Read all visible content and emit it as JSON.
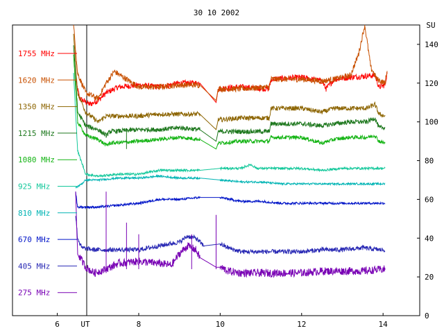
{
  "chart_data": {
    "type": "line",
    "title": "30 10 2002",
    "xlabel": "UT",
    "ylabel": "SU",
    "xlim": [
      4.9,
      14.9
    ],
    "ylim": [
      0,
      150
    ],
    "x_ticks": [
      "6",
      "8",
      "10",
      "12",
      "14"
    ],
    "x_tick_values": [
      6,
      8,
      10,
      12,
      14
    ],
    "y_ticks": [
      "0",
      "20",
      "40",
      "60",
      "80",
      "100",
      "120",
      "140"
    ],
    "y_tick_values": [
      0,
      20,
      40,
      60,
      80,
      100,
      120,
      140
    ],
    "grid": false,
    "legend_position": "left",
    "series": [
      {
        "name": "1755 MHz",
        "color": "#ff0000",
        "noise": 1.5,
        "points": [
          [
            6.45,
            122
          ],
          [
            6.55,
            112
          ],
          [
            6.8,
            109
          ],
          [
            7.0,
            111
          ],
          [
            7.2,
            115
          ],
          [
            7.5,
            118
          ],
          [
            8.0,
            119
          ],
          [
            8.5,
            118
          ],
          [
            9.0,
            120
          ],
          [
            9.5,
            120
          ],
          [
            9.9,
            110
          ],
          [
            9.95,
            117
          ],
          [
            10.5,
            118
          ],
          [
            11.2,
            117
          ],
          [
            11.25,
            122
          ],
          [
            12.0,
            123
          ],
          [
            12.5,
            121
          ],
          [
            12.6,
            117
          ],
          [
            12.8,
            122
          ],
          [
            13.2,
            123
          ],
          [
            13.8,
            124
          ],
          [
            13.9,
            118
          ],
          [
            14.05,
            119
          ],
          [
            14.1,
            126
          ]
        ]
      },
      {
        "name": "1620 MHz",
        "color": "#c85000",
        "noise": 1.5,
        "points": [
          [
            6.4,
            150
          ],
          [
            6.5,
            125
          ],
          [
            6.7,
            115
          ],
          [
            7.0,
            112
          ],
          [
            7.2,
            120
          ],
          [
            7.4,
            126
          ],
          [
            7.7,
            122
          ],
          [
            8.0,
            118
          ],
          [
            8.5,
            118
          ],
          [
            9.0,
            119
          ],
          [
            9.5,
            119
          ],
          [
            9.9,
            111
          ],
          [
            9.95,
            117
          ],
          [
            10.5,
            117
          ],
          [
            11.2,
            118
          ],
          [
            11.25,
            122
          ],
          [
            12.0,
            122
          ],
          [
            12.5,
            121
          ],
          [
            12.8,
            122
          ],
          [
            13.2,
            124
          ],
          [
            13.4,
            135
          ],
          [
            13.55,
            150
          ],
          [
            13.7,
            128
          ],
          [
            13.85,
            122
          ],
          [
            14.05,
            120
          ],
          [
            14.1,
            127
          ]
        ]
      },
      {
        "name": "1350 MHz",
        "color": "#8c6400",
        "noise": 1.2,
        "points": [
          [
            6.4,
            145
          ],
          [
            6.5,
            115
          ],
          [
            6.7,
            105
          ],
          [
            7.0,
            100
          ],
          [
            7.2,
            103
          ],
          [
            8.0,
            103
          ],
          [
            8.5,
            104
          ],
          [
            9.0,
            104
          ],
          [
            9.5,
            104
          ],
          [
            9.9,
            96
          ],
          [
            9.95,
            101
          ],
          [
            10.5,
            102
          ],
          [
            11.2,
            102
          ],
          [
            11.25,
            107
          ],
          [
            12.0,
            107
          ],
          [
            12.5,
            105
          ],
          [
            12.8,
            107
          ],
          [
            13.2,
            107
          ],
          [
            13.6,
            107
          ],
          [
            13.8,
            109
          ],
          [
            13.9,
            104
          ],
          [
            14.05,
            103
          ]
        ]
      },
      {
        "name": "1215 MHz",
        "color": "#1e781e",
        "noise": 1.2,
        "points": [
          [
            6.4,
            140
          ],
          [
            6.5,
            105
          ],
          [
            6.7,
            98
          ],
          [
            7.0,
            96
          ],
          [
            7.2,
            93
          ],
          [
            7.3,
            95
          ],
          [
            8.0,
            96
          ],
          [
            8.5,
            96
          ],
          [
            9.0,
            97
          ],
          [
            9.5,
            96
          ],
          [
            9.9,
            90
          ],
          [
            9.95,
            95
          ],
          [
            10.5,
            95
          ],
          [
            11.2,
            95
          ],
          [
            11.25,
            99
          ],
          [
            12.0,
            99
          ],
          [
            12.5,
            98
          ],
          [
            12.8,
            99
          ],
          [
            13.2,
            100
          ],
          [
            13.6,
            100
          ],
          [
            13.8,
            102
          ],
          [
            13.9,
            97
          ],
          [
            14.05,
            97
          ]
        ]
      },
      {
        "name": "1080 MHz",
        "color": "#14b414",
        "noise": 1.0,
        "points": [
          [
            6.4,
            135
          ],
          [
            6.5,
            100
          ],
          [
            6.7,
            93
          ],
          [
            7.0,
            91
          ],
          [
            7.2,
            88
          ],
          [
            7.3,
            89
          ],
          [
            8.0,
            90
          ],
          [
            8.5,
            91
          ],
          [
            9.0,
            92
          ],
          [
            9.5,
            91
          ],
          [
            9.9,
            86
          ],
          [
            9.95,
            89
          ],
          [
            10.5,
            90
          ],
          [
            11.2,
            90
          ],
          [
            11.25,
            92
          ],
          [
            12.0,
            92
          ],
          [
            12.5,
            89
          ],
          [
            12.8,
            91
          ],
          [
            13.2,
            92
          ],
          [
            13.6,
            92
          ],
          [
            13.8,
            93
          ],
          [
            13.9,
            90
          ],
          [
            14.05,
            89
          ]
        ]
      },
      {
        "name": "925 MHz",
        "color": "#14c89b",
        "noise": 0.6,
        "points": [
          [
            6.4,
            125
          ],
          [
            6.5,
            85
          ],
          [
            6.7,
            73
          ],
          [
            7.0,
            72
          ],
          [
            7.5,
            73
          ],
          [
            8.0,
            73
          ],
          [
            8.5,
            75
          ],
          [
            9.0,
            75
          ],
          [
            9.5,
            75
          ],
          [
            10.0,
            76
          ],
          [
            10.5,
            76
          ],
          [
            10.75,
            78
          ],
          [
            10.9,
            76
          ],
          [
            11.5,
            76
          ],
          [
            12.0,
            76
          ],
          [
            12.5,
            75
          ],
          [
            13.0,
            76
          ],
          [
            13.5,
            76
          ],
          [
            14.05,
            76
          ]
        ]
      },
      {
        "name": "810 MHz",
        "color": "#00b4b4",
        "noise": 0.5,
        "points": [
          [
            6.45,
            66
          ],
          [
            6.6,
            68
          ],
          [
            6.7,
            70
          ],
          [
            7.0,
            70
          ],
          [
            7.5,
            71
          ],
          [
            8.0,
            71
          ],
          [
            8.5,
            72
          ],
          [
            9.0,
            71
          ],
          [
            9.5,
            71
          ],
          [
            10.0,
            70
          ],
          [
            10.5,
            69
          ],
          [
            11.0,
            69
          ],
          [
            11.5,
            68
          ],
          [
            12.0,
            68
          ],
          [
            12.5,
            68
          ],
          [
            13.0,
            68
          ],
          [
            13.5,
            68
          ],
          [
            14.05,
            68
          ]
        ]
      },
      {
        "name": "670 MHz",
        "color": "#0014c8",
        "noise": 0.6,
        "points": [
          [
            6.45,
            64
          ],
          [
            6.5,
            56
          ],
          [
            7.0,
            56
          ],
          [
            7.5,
            57
          ],
          [
            8.0,
            58
          ],
          [
            8.5,
            60
          ],
          [
            9.0,
            60
          ],
          [
            9.5,
            61
          ],
          [
            10.0,
            61
          ],
          [
            10.5,
            59
          ],
          [
            11.0,
            59
          ],
          [
            11.5,
            58
          ],
          [
            12.0,
            58
          ],
          [
            12.5,
            58
          ],
          [
            13.0,
            58
          ],
          [
            13.5,
            58
          ],
          [
            14.05,
            58
          ]
        ]
      },
      {
        "name": "405 MHz",
        "color": "#2828b4",
        "noise": 1.2,
        "points": [
          [
            6.45,
            52
          ],
          [
            6.5,
            40
          ],
          [
            6.6,
            35
          ],
          [
            6.9,
            34
          ],
          [
            7.5,
            34
          ],
          [
            8.0,
            34
          ],
          [
            8.5,
            36
          ],
          [
            9.0,
            38
          ],
          [
            9.2,
            41
          ],
          [
            9.4,
            40
          ],
          [
            9.6,
            36
          ],
          [
            10.0,
            37
          ],
          [
            10.2,
            35
          ],
          [
            10.5,
            33
          ],
          [
            11.0,
            33
          ],
          [
            11.5,
            33
          ],
          [
            12.0,
            33
          ],
          [
            12.5,
            34
          ],
          [
            13.0,
            34
          ],
          [
            13.5,
            35
          ],
          [
            13.9,
            34
          ],
          [
            14.05,
            34
          ]
        ]
      },
      {
        "name": "275 MHz",
        "color": "#7800b4",
        "noise": 2.0,
        "points": [
          [
            6.45,
            62
          ],
          [
            6.5,
            32
          ],
          [
            6.7,
            25
          ],
          [
            6.9,
            22
          ],
          [
            7.2,
            24
          ],
          [
            7.5,
            27
          ],
          [
            8.0,
            28
          ],
          [
            8.5,
            27
          ],
          [
            8.8,
            26
          ],
          [
            9.0,
            32
          ],
          [
            9.2,
            36
          ],
          [
            9.4,
            34
          ],
          [
            9.5,
            30
          ],
          [
            9.9,
            25
          ],
          [
            10.0,
            25
          ],
          [
            10.2,
            23
          ],
          [
            10.5,
            22
          ],
          [
            11.0,
            22
          ],
          [
            11.5,
            22
          ],
          [
            12.0,
            22
          ],
          [
            12.5,
            23
          ],
          [
            13.0,
            23
          ],
          [
            13.5,
            23
          ],
          [
            14.05,
            24
          ]
        ]
      }
    ]
  }
}
